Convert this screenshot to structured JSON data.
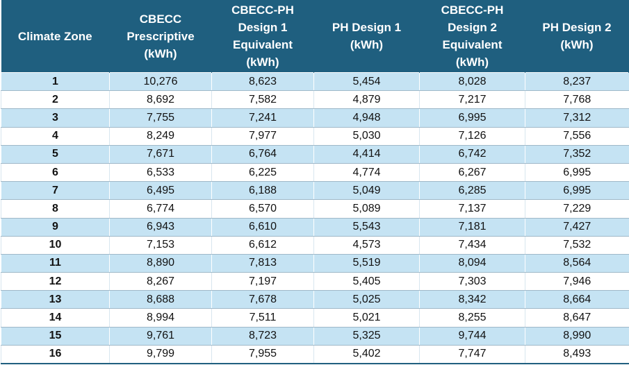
{
  "table": {
    "headers": [
      [
        "Climate Zone"
      ],
      [
        "CBECC",
        "Prescriptive",
        "(kWh)"
      ],
      [
        "CBECC-PH",
        "Design 1",
        "Equivalent",
        "(kWh)"
      ],
      [
        "PH Design 1",
        "(kWh)"
      ],
      [
        "CBECC-PH",
        "Design 2",
        "Equivalent",
        "(kWh)"
      ],
      [
        "PH Design 2",
        "(kWh)"
      ]
    ],
    "rows": [
      [
        "1",
        "10,276",
        "8,623",
        "5,454",
        "8,028",
        "8,237"
      ],
      [
        "2",
        "8,692",
        "7,582",
        "4,879",
        "7,217",
        "7,768"
      ],
      [
        "3",
        "7,755",
        "7,241",
        "4,948",
        "6,995",
        "7,312"
      ],
      [
        "4",
        "8,249",
        "7,977",
        "5,030",
        "7,126",
        "7,556"
      ],
      [
        "5",
        "7,671",
        "6,764",
        "4,414",
        "6,742",
        "7,352"
      ],
      [
        "6",
        "6,533",
        "6,225",
        "4,774",
        "6,267",
        "6,995"
      ],
      [
        "7",
        "6,495",
        "6,188",
        "5,049",
        "6,285",
        "6,995"
      ],
      [
        "8",
        "6,774",
        "6,570",
        "5,089",
        "7,137",
        "7,229"
      ],
      [
        "9",
        "6,943",
        "6,610",
        "5,543",
        "7,181",
        "7,427"
      ],
      [
        "10",
        "7,153",
        "6,612",
        "4,573",
        "7,434",
        "7,532"
      ],
      [
        "11",
        "8,890",
        "7,813",
        "5,519",
        "8,094",
        "8,564"
      ],
      [
        "12",
        "8,267",
        "7,197",
        "5,405",
        "7,303",
        "7,946"
      ],
      [
        "13",
        "8,688",
        "7,678",
        "5,025",
        "8,342",
        "8,664"
      ],
      [
        "14",
        "8,994",
        "7,511",
        "5,021",
        "8,255",
        "8,647"
      ],
      [
        "15",
        "9,761",
        "8,723",
        "5,325",
        "9,744",
        "8,990"
      ],
      [
        "16",
        "9,799",
        "7,955",
        "5,402",
        "7,747",
        "8,493"
      ]
    ]
  }
}
